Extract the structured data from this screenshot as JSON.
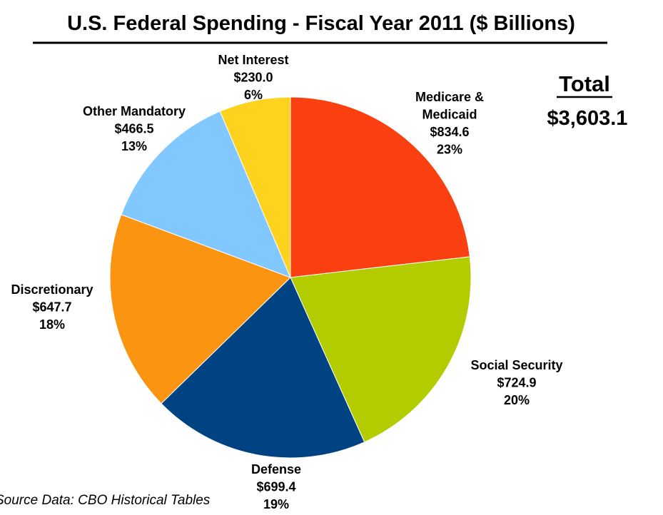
{
  "chart_data": {
    "type": "pie",
    "title": "U.S. Federal Spending - Fiscal Year 2011 ($ Billions)",
    "total_label": "Total",
    "total_value": "$3,603.1",
    "source": "Source Data: CBO Historical Tables",
    "start_angle_deg": 0,
    "direction": "clockwise",
    "slices": [
      {
        "name": "Medicare & Medicaid",
        "name_lines": [
          "Medicare &",
          "Medicaid"
        ],
        "value": 834.6,
        "value_label": "$834.6",
        "percent_label": "23%",
        "color": "#fa4010"
      },
      {
        "name": "Social Security",
        "name_lines": [
          "Social Security"
        ],
        "value": 724.9,
        "value_label": "$724.9",
        "percent_label": "20%",
        "color": "#b2cc00"
      },
      {
        "name": "Defense",
        "name_lines": [
          "Defense"
        ],
        "value": 699.4,
        "value_label": "$699.4",
        "percent_label": "19%",
        "color": "#004383"
      },
      {
        "name": "Discretionary",
        "name_lines": [
          "Discretionary"
        ],
        "value": 647.7,
        "value_label": "$647.7",
        "percent_label": "18%",
        "color": "#fb9410"
      },
      {
        "name": "Other Mandatory",
        "name_lines": [
          "Other Mandatory"
        ],
        "value": 466.5,
        "value_label": "$466.5",
        "percent_label": "13%",
        "color": "#80c8ff"
      },
      {
        "name": "Net Interest",
        "name_lines": [
          "Net Interest"
        ],
        "value": 230.0,
        "value_label": "$230.0",
        "percent_label": "6%",
        "color": "#ffd21f"
      }
    ]
  }
}
